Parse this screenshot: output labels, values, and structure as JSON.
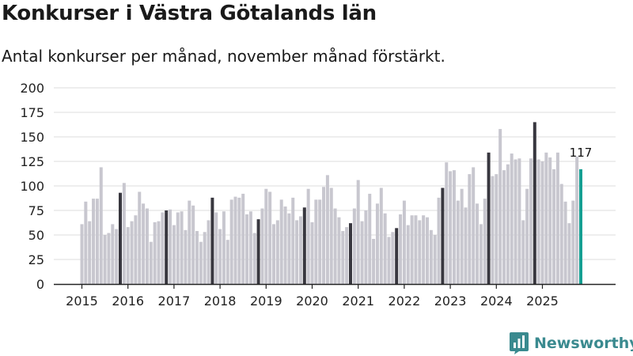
{
  "header": {
    "title": "Konkurser i Västra Götalands län",
    "subtitle": "Antal konkurser per månad, november månad förstärkt."
  },
  "brand": {
    "name": "Newsworthy",
    "color": "#3a8a8f"
  },
  "colors": {
    "regular": "#c8c7cf",
    "november": "#38373f",
    "latest": "#16a093",
    "grid": "#dcdcdc",
    "axis": "#222222"
  },
  "chart_data": {
    "type": "bar",
    "title": "Konkurser i Västra Götalands län",
    "subtitle": "Antal konkurser per månad, november månad förstärkt.",
    "xlabel": "",
    "ylabel": "",
    "ylim": [
      0,
      200
    ],
    "yticks": [
      0,
      25,
      50,
      75,
      100,
      125,
      150,
      175,
      200
    ],
    "year_labels": [
      "2015",
      "2016",
      "2017",
      "2018",
      "2019",
      "2020",
      "2021",
      "2022",
      "2023",
      "2024",
      "2025"
    ],
    "highlight_month": 11,
    "start": "2015-01",
    "latest_label": "117",
    "series": [
      {
        "name": "Antal konkurser",
        "values": [
          61,
          84,
          64,
          87,
          87,
          119,
          50,
          52,
          61,
          56,
          93,
          103,
          58,
          64,
          70,
          94,
          82,
          77,
          43,
          63,
          64,
          73,
          75,
          76,
          60,
          73,
          74,
          55,
          85,
          80,
          54,
          43,
          53,
          65,
          88,
          73,
          56,
          74,
          45,
          86,
          89,
          88,
          92,
          71,
          74,
          52,
          66,
          77,
          97,
          94,
          61,
          65,
          86,
          79,
          72,
          88,
          65,
          69,
          78,
          97,
          63,
          86,
          86,
          99,
          111,
          98,
          77,
          68,
          54,
          58,
          62,
          77,
          106,
          64,
          75,
          92,
          46,
          82,
          98,
          72,
          48,
          53,
          57,
          71,
          85,
          60,
          70,
          70,
          65,
          70,
          68,
          55,
          50,
          88,
          98,
          124,
          115,
          116,
          85,
          97,
          78,
          112,
          119,
          82,
          61,
          87,
          134,
          110,
          112,
          158,
          116,
          122,
          133,
          127,
          128,
          65,
          97,
          128,
          165,
          127,
          125,
          134,
          129,
          117,
          134,
          102,
          84,
          62,
          85,
          130,
          117
        ]
      }
    ]
  }
}
